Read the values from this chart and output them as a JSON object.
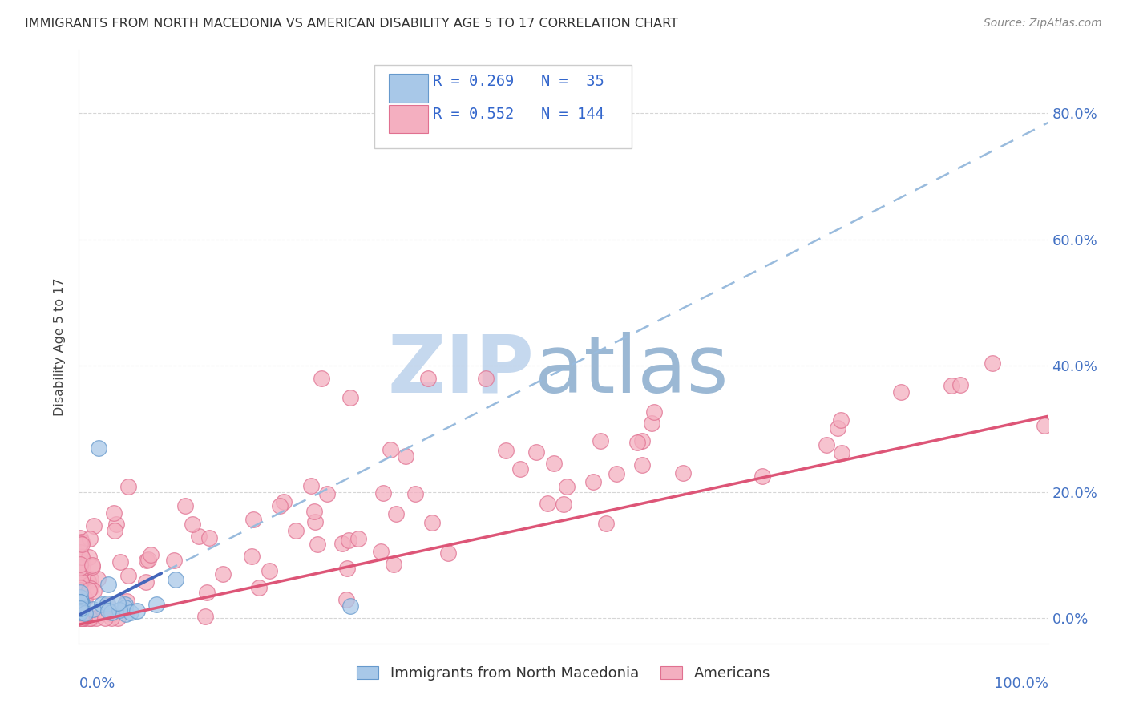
{
  "title": "IMMIGRANTS FROM NORTH MACEDONIA VS AMERICAN DISABILITY AGE 5 TO 17 CORRELATION CHART",
  "source": "Source: ZipAtlas.com",
  "ylabel": "Disability Age 5 to 17",
  "ytick_labels": [
    "0.0%",
    "20.0%",
    "40.0%",
    "60.0%",
    "80.0%"
  ],
  "ytick_values": [
    0.0,
    0.2,
    0.4,
    0.6,
    0.8
  ],
  "xlim": [
    0.0,
    1.0
  ],
  "ylim": [
    -0.04,
    0.9
  ],
  "legend_line1": "R = 0.269   N =  35",
  "legend_line2": "R = 0.552   N = 144",
  "color_blue_fill": "#a8c8e8",
  "color_blue_edge": "#6699cc",
  "color_pink_fill": "#f4afc0",
  "color_pink_edge": "#e07090",
  "color_line_blue_solid": "#4466bb",
  "color_line_pink_solid": "#dd5577",
  "color_line_dash": "#99bbdd",
  "color_text_blue": "#3366cc",
  "color_axis_label": "#4472c4",
  "background": "#ffffff",
  "grid_color": "#cccccc",
  "watermark_zip_color": "#c5d8ee",
  "watermark_atlas_color": "#9bb8d4"
}
